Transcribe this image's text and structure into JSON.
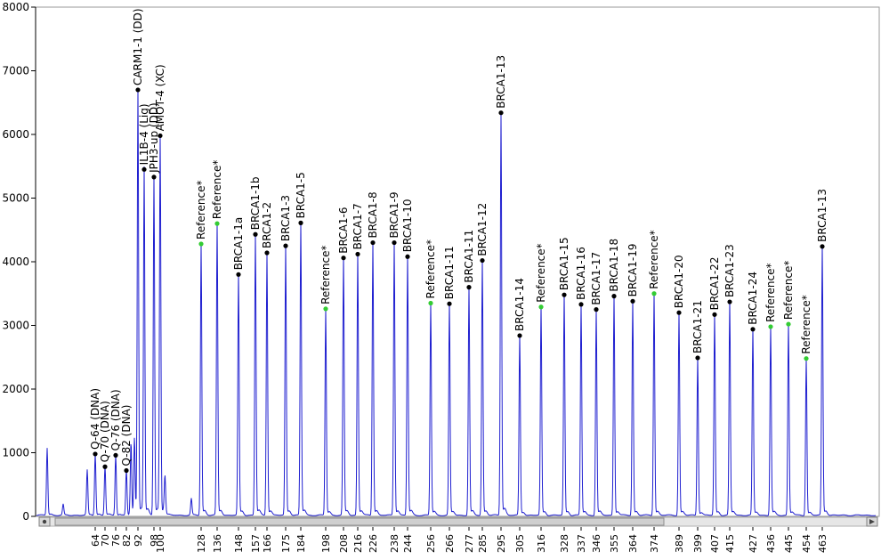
{
  "chart_data": {
    "type": "line",
    "title": "",
    "xlabel": "",
    "ylabel": "",
    "ylim": [
      0,
      8000
    ],
    "y_ticks": [
      0,
      1000,
      2000,
      3000,
      4000,
      5000,
      6000,
      7000,
      8000
    ],
    "x_tick_labels": [
      "64",
      "70",
      "76",
      "82",
      "92",
      "98",
      "100",
      "128",
      "136",
      "148",
      "157",
      "166",
      "175",
      "184",
      "198",
      "208",
      "216",
      "226",
      "238",
      "244",
      "256",
      "266",
      "277",
      "285",
      "295",
      "305",
      "316",
      "328",
      "337",
      "346",
      "355",
      "364",
      "374",
      "389",
      "399",
      "407",
      "415",
      "427",
      "436",
      "445",
      "454",
      "463"
    ],
    "grid": false,
    "colors": {
      "trace": "#2020d0",
      "reference_marker": "#33cc33",
      "probe_marker": "#000000"
    },
    "peaks": [
      {
        "label": "Q-64 (DNA)",
        "size": 64,
        "height": 980,
        "reference": false
      },
      {
        "label": "Q-70 (DNA)",
        "size": 70,
        "height": 780,
        "reference": false
      },
      {
        "label": "Q-76 (DNA)",
        "size": 76,
        "height": 960,
        "reference": false
      },
      {
        "label": "Q-82 (DNA)",
        "size": 82,
        "height": 720,
        "reference": false
      },
      {
        "label": "CARM1-1 (DD)",
        "size": 92,
        "height": 6700,
        "reference": false
      },
      {
        "label": "IL1B-4 (Lig)",
        "size": 96,
        "height": 5450,
        "reference": false
      },
      {
        "label": "JPH3-up (DD)",
        "size": 98,
        "height": 5330,
        "reference": false
      },
      {
        "label": "AMOT-4 (XC)",
        "size": 100,
        "height": 5980,
        "reference": false
      },
      {
        "label": "Reference*",
        "size": 128,
        "height": 4280,
        "reference": true
      },
      {
        "label": "Reference*",
        "size": 136,
        "height": 4600,
        "reference": true
      },
      {
        "label": "BRCA1-1a",
        "size": 148,
        "height": 3800,
        "reference": false
      },
      {
        "label": "BRCA1-1b",
        "size": 157,
        "height": 4430,
        "reference": false
      },
      {
        "label": "BRCA1-2",
        "size": 166,
        "height": 4140,
        "reference": false
      },
      {
        "label": "BRCA1-3",
        "size": 175,
        "height": 4250,
        "reference": false
      },
      {
        "label": "BRCA1-5",
        "size": 184,
        "height": 4610,
        "reference": false
      },
      {
        "label": "Reference*",
        "size": 198,
        "height": 3260,
        "reference": true
      },
      {
        "label": "BRCA1-6",
        "size": 208,
        "height": 4060,
        "reference": false
      },
      {
        "label": "BRCA1-7",
        "size": 216,
        "height": 4120,
        "reference": false
      },
      {
        "label": "BRCA1-8",
        "size": 226,
        "height": 4300,
        "reference": false
      },
      {
        "label": "BRCA1-9",
        "size": 238,
        "height": 4300,
        "reference": false
      },
      {
        "label": "BRCA1-10",
        "size": 244,
        "height": 4080,
        "reference": false
      },
      {
        "label": "Reference*",
        "size": 256,
        "height": 3350,
        "reference": true
      },
      {
        "label": "BRCA1-11",
        "size": 266,
        "height": 3340,
        "reference": false
      },
      {
        "label": "BRCA1-11",
        "size": 277,
        "height": 3600,
        "reference": false
      },
      {
        "label": "BRCA1-12",
        "size": 285,
        "height": 4020,
        "reference": false
      },
      {
        "label": "BRCA1-13",
        "size": 295,
        "height": 6340,
        "reference": false
      },
      {
        "label": "BRCA1-14",
        "size": 305,
        "height": 2840,
        "reference": false
      },
      {
        "label": "Reference*",
        "size": 316,
        "height": 3290,
        "reference": true
      },
      {
        "label": "BRCA1-15",
        "size": 328,
        "height": 3480,
        "reference": false
      },
      {
        "label": "BRCA1-16",
        "size": 337,
        "height": 3330,
        "reference": false
      },
      {
        "label": "BRCA1-17",
        "size": 346,
        "height": 3250,
        "reference": false
      },
      {
        "label": "BRCA1-18",
        "size": 355,
        "height": 3460,
        "reference": false
      },
      {
        "label": "BRCA1-19",
        "size": 364,
        "height": 3380,
        "reference": false
      },
      {
        "label": "Reference*",
        "size": 374,
        "height": 3500,
        "reference": true
      },
      {
        "label": "BRCA1-20",
        "size": 389,
        "height": 3200,
        "reference": false
      },
      {
        "label": "BRCA1-21",
        "size": 399,
        "height": 2490,
        "reference": false
      },
      {
        "label": "BRCA1-22",
        "size": 407,
        "height": 3170,
        "reference": false
      },
      {
        "label": "BRCA1-23",
        "size": 415,
        "height": 3370,
        "reference": false
      },
      {
        "label": "BRCA1-24",
        "size": 427,
        "height": 2940,
        "reference": false
      },
      {
        "label": "Reference*",
        "size": 436,
        "height": 2980,
        "reference": true
      },
      {
        "label": "Reference*",
        "size": 445,
        "height": 3020,
        "reference": true
      },
      {
        "label": "Reference*",
        "size": 454,
        "height": 2480,
        "reference": true
      },
      {
        "label": "BRCA1-13",
        "size": 463,
        "height": 4240,
        "reference": false
      }
    ],
    "minor_peaks": [
      {
        "size": 28,
        "height": 1060
      },
      {
        "size": 40,
        "height": 170
      },
      {
        "size": 58,
        "height": 710
      },
      {
        "size": 86,
        "height": 1140
      },
      {
        "size": 89,
        "height": 1200
      },
      {
        "size": 102,
        "height": 560
      },
      {
        "size": 113,
        "height": 260
      }
    ]
  }
}
